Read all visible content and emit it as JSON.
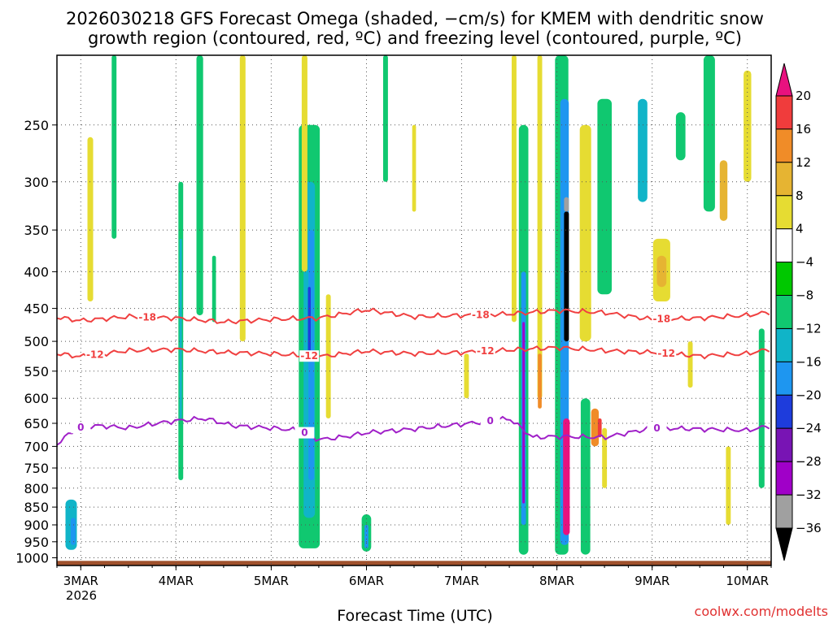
{
  "chart_data": {
    "type": "heatmap",
    "title_line1": "2026030218 GFS Forecast Omega (shaded, −cm/s) for KMEM with dendritic snow",
    "title_line2": "growth region (contoured, red, ºC) and freezing level (contoured, purple, ºC)",
    "xlabel": "Forecast Time (UTC)",
    "ylabel": "",
    "x_ticks": [
      {
        "label": "3MAR",
        "day": 3
      },
      {
        "label": "4MAR",
        "day": 4
      },
      {
        "label": "5MAR",
        "day": 5
      },
      {
        "label": "6MAR",
        "day": 6
      },
      {
        "label": "7MAR",
        "day": 7
      },
      {
        "label": "8MAR",
        "day": 8
      },
      {
        "label": "9MAR",
        "day": 9
      },
      {
        "label": "10MAR",
        "day": 10
      }
    ],
    "x_year_label": "2026",
    "x_range_days": [
      2.75,
      10.25
    ],
    "y_ticks": [
      "250",
      "300",
      "350",
      "400",
      "450",
      "500",
      "550",
      "600",
      "650",
      "700",
      "750",
      "800",
      "850",
      "900",
      "950",
      "1000"
    ],
    "y_range_hpa": [
      200,
      1025
    ],
    "colorbar": {
      "levels": [
        "20",
        "16",
        "12",
        "8",
        "4",
        "−4",
        "−8",
        "−12",
        "−16",
        "−20",
        "−24",
        "−28",
        "−32",
        "−36"
      ],
      "colors": [
        "#e8117f",
        "#f03c3c",
        "#f08c28",
        "#e6b432",
        "#e6dc32",
        "#ffffff",
        "#00c800",
        "#10c870",
        "#10b4c8",
        "#1e96f0",
        "#1e3cdc",
        "#7814b4",
        "#a000c8",
        "#a0a0a0",
        "#000000"
      ]
    },
    "dgz_contours": [
      {
        "level": "-18",
        "color": "#f04040",
        "label_days": [
          3.7,
          7.2,
          9.1
        ],
        "days": [
          2.75,
          3.0,
          3.5,
          4.0,
          4.5,
          5.0,
          5.5,
          6.0,
          6.5,
          7.0,
          7.5,
          8.0,
          8.5,
          9.0,
          9.5,
          10.0,
          10.25
        ],
        "pressure": [
          463,
          468,
          462,
          464,
          470,
          466,
          464,
          452,
          462,
          460,
          458,
          453,
          456,
          466,
          464,
          460,
          455
        ]
      },
      {
        "level": "-12",
        "color": "#f04040",
        "label_days": [
          3.15,
          5.4,
          7.25,
          9.15
        ],
        "days": [
          2.75,
          3.0,
          3.5,
          4.0,
          4.5,
          5.0,
          5.5,
          6.0,
          6.5,
          7.0,
          7.5,
          8.0,
          8.5,
          9.0,
          9.5,
          10.0,
          10.25
        ],
        "pressure": [
          520,
          525,
          515,
          513,
          518,
          520,
          525,
          516,
          520,
          518,
          514,
          510,
          515,
          518,
          524,
          520,
          512
        ]
      }
    ],
    "freezing_contour": {
      "level": "0",
      "color": "#a020c8",
      "label_days": [
        3.0,
        5.35,
        7.3,
        9.05
      ],
      "days": [
        2.75,
        2.95,
        3.2,
        3.5,
        3.8,
        4.0,
        4.3,
        4.6,
        5.0,
        5.3,
        5.5,
        5.8,
        6.0,
        6.5,
        7.0,
        7.5,
        7.75,
        8.0,
        8.5,
        9.0,
        9.5,
        10.0,
        10.25
      ],
      "pressure": [
        695,
        660,
        655,
        660,
        650,
        645,
        640,
        655,
        660,
        665,
        685,
        678,
        670,
        662,
        652,
        640,
        680,
        678,
        680,
        660,
        662,
        665,
        655
      ]
    },
    "omega_cells": [
      {
        "day": 2.9,
        "p0": 830,
        "p1": 975,
        "w": 0.12,
        "v": -12
      },
      {
        "day": 2.92,
        "p0": 880,
        "p1": 960,
        "w": 0.05,
        "v": -16
      },
      {
        "day": 3.1,
        "p0": 260,
        "p1": 440,
        "w": 0.06,
        "v": 4
      },
      {
        "day": 3.35,
        "p0": 200,
        "p1": 360,
        "w": 0.05,
        "v": -8
      },
      {
        "day": 4.05,
        "p0": 300,
        "p1": 780,
        "w": 0.05,
        "v": -8
      },
      {
        "day": 4.05,
        "p0": 360,
        "p1": 640,
        "w": 0.025,
        "v": -12
      },
      {
        "day": 4.25,
        "p0": 200,
        "p1": 460,
        "w": 0.07,
        "v": -8
      },
      {
        "day": 4.4,
        "p0": 380,
        "p1": 470,
        "w": 0.04,
        "v": -8
      },
      {
        "day": 4.7,
        "p0": 200,
        "p1": 500,
        "w": 0.06,
        "v": 4
      },
      {
        "day": 5.4,
        "p0": 250,
        "p1": 970,
        "w": 0.22,
        "v": -8
      },
      {
        "day": 5.4,
        "p0": 300,
        "p1": 880,
        "w": 0.12,
        "v": -12
      },
      {
        "day": 5.42,
        "p0": 350,
        "p1": 780,
        "w": 0.06,
        "v": -16
      },
      {
        "day": 5.4,
        "p0": 420,
        "p1": 520,
        "w": 0.03,
        "v": -20
      },
      {
        "day": 5.35,
        "p0": 200,
        "p1": 400,
        "w": 0.06,
        "v": 4
      },
      {
        "day": 5.6,
        "p0": 430,
        "p1": 640,
        "w": 0.05,
        "v": 4
      },
      {
        "day": 6.0,
        "p0": 870,
        "p1": 980,
        "w": 0.1,
        "v": -8
      },
      {
        "day": 6.0,
        "p0": 900,
        "p1": 970,
        "w": 0.04,
        "v": -16
      },
      {
        "day": 6.2,
        "p0": 200,
        "p1": 300,
        "w": 0.05,
        "v": -8
      },
      {
        "day": 6.5,
        "p0": 250,
        "p1": 330,
        "w": 0.04,
        "v": 4
      },
      {
        "day": 7.05,
        "p0": 520,
        "p1": 600,
        "w": 0.05,
        "v": 4
      },
      {
        "day": 7.55,
        "p0": 200,
        "p1": 470,
        "w": 0.05,
        "v": 4
      },
      {
        "day": 7.65,
        "p0": 250,
        "p1": 990,
        "w": 0.1,
        "v": -8
      },
      {
        "day": 7.65,
        "p0": 400,
        "p1": 900,
        "w": 0.05,
        "v": -16
      },
      {
        "day": 7.65,
        "p0": 470,
        "p1": 840,
        "w": 0.025,
        "v": -28
      },
      {
        "day": 7.82,
        "p0": 200,
        "p1": 600,
        "w": 0.05,
        "v": 4
      },
      {
        "day": 7.82,
        "p0": 520,
        "p1": 620,
        "w": 0.04,
        "v": 12
      },
      {
        "day": 8.05,
        "p0": 200,
        "p1": 990,
        "w": 0.14,
        "v": -8
      },
      {
        "day": 8.08,
        "p0": 230,
        "p1": 960,
        "w": 0.09,
        "v": -16
      },
      {
        "day": 8.1,
        "p0": 330,
        "p1": 500,
        "w": 0.05,
        "v": -36
      },
      {
        "day": 8.1,
        "p0": 315,
        "p1": 330,
        "w": 0.05,
        "v": -32
      },
      {
        "day": 8.1,
        "p0": 640,
        "p1": 930,
        "w": 0.07,
        "v": 20
      },
      {
        "day": 8.3,
        "p0": 600,
        "p1": 990,
        "w": 0.1,
        "v": -8
      },
      {
        "day": 8.3,
        "p0": 250,
        "p1": 500,
        "w": 0.12,
        "v": 4
      },
      {
        "day": 8.4,
        "p0": 620,
        "p1": 700,
        "w": 0.08,
        "v": 12
      },
      {
        "day": 8.45,
        "p0": 640,
        "p1": 680,
        "w": 0.04,
        "v": 16
      },
      {
        "day": 8.5,
        "p0": 230,
        "p1": 430,
        "w": 0.15,
        "v": -8
      },
      {
        "day": 8.5,
        "p0": 660,
        "p1": 800,
        "w": 0.05,
        "v": 4
      },
      {
        "day": 8.9,
        "p0": 230,
        "p1": 320,
        "w": 0.1,
        "v": -12
      },
      {
        "day": 9.1,
        "p0": 360,
        "p1": 440,
        "w": 0.18,
        "v": 4
      },
      {
        "day": 9.1,
        "p0": 380,
        "p1": 420,
        "w": 0.1,
        "v": 8
      },
      {
        "day": 9.3,
        "p0": 240,
        "p1": 280,
        "w": 0.1,
        "v": -8
      },
      {
        "day": 9.4,
        "p0": 500,
        "p1": 580,
        "w": 0.05,
        "v": 4
      },
      {
        "day": 9.6,
        "p0": 200,
        "p1": 330,
        "w": 0.12,
        "v": -8
      },
      {
        "day": 9.75,
        "p0": 280,
        "p1": 340,
        "w": 0.08,
        "v": 8
      },
      {
        "day": 9.8,
        "p0": 700,
        "p1": 900,
        "w": 0.05,
        "v": 4
      },
      {
        "day": 10.0,
        "p0": 210,
        "p1": 300,
        "w": 0.08,
        "v": 4
      },
      {
        "day": 10.15,
        "p0": 480,
        "p1": 800,
        "w": 0.06,
        "v": -8
      }
    ],
    "ground_hpa": 1010
  },
  "credit": "coolwx.com/modelts"
}
